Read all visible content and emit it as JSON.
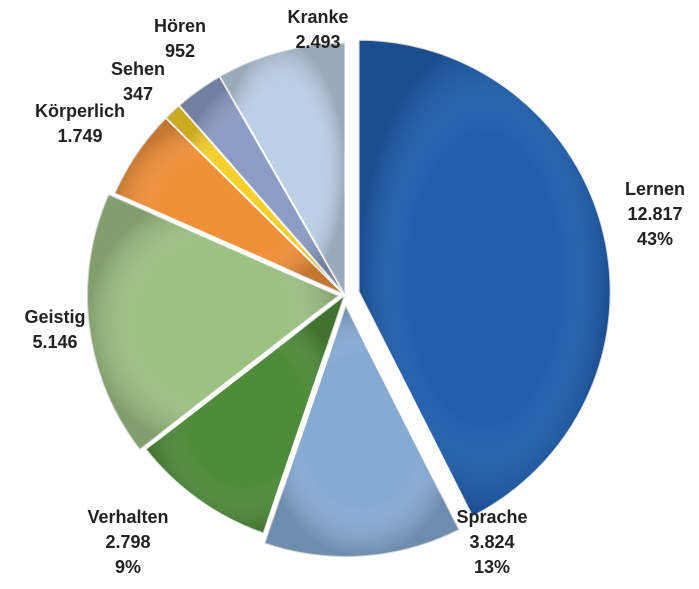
{
  "chart_data": {
    "type": "pie",
    "categories": [
      "Lernen",
      "Sprache",
      "Verhalten",
      "Geistig",
      "Körperlich",
      "Sehen",
      "Hören",
      "Kranke"
    ],
    "values": [
      12817,
      3824,
      2798,
      5146,
      1749,
      347,
      952,
      2493
    ],
    "value_labels": [
      "12.817",
      "3.824",
      "2.798",
      "5.146",
      "1.749",
      "347",
      "952",
      "2.493"
    ],
    "percent_labels": [
      "43%",
      "13%",
      "9%",
      null,
      null,
      null,
      null,
      null
    ],
    "colors": [
      "#1f5fae",
      "#86abd3",
      "#4f8c3a",
      "#9dc083",
      "#f0913a",
      "#f5d02a",
      "#8d9cc5",
      "#bccfe5"
    ]
  }
}
